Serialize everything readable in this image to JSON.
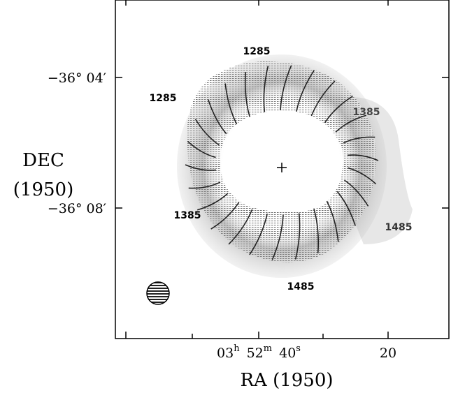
{
  "figure": {
    "y_axis": {
      "title_line1": "DEC",
      "title_line2": "(1950)",
      "ticks": [
        "−36° 04′",
        "−36° 08′"
      ]
    },
    "x_axis": {
      "title": "RA (1950)",
      "ticks": [
        [
          "03",
          "h",
          "52",
          "m",
          "40",
          "s"
        ],
        [
          "20"
        ]
      ]
    },
    "contour_labels": [
      "1285",
      "1285",
      "1385",
      "1385",
      "1485",
      "1485"
    ]
  }
}
